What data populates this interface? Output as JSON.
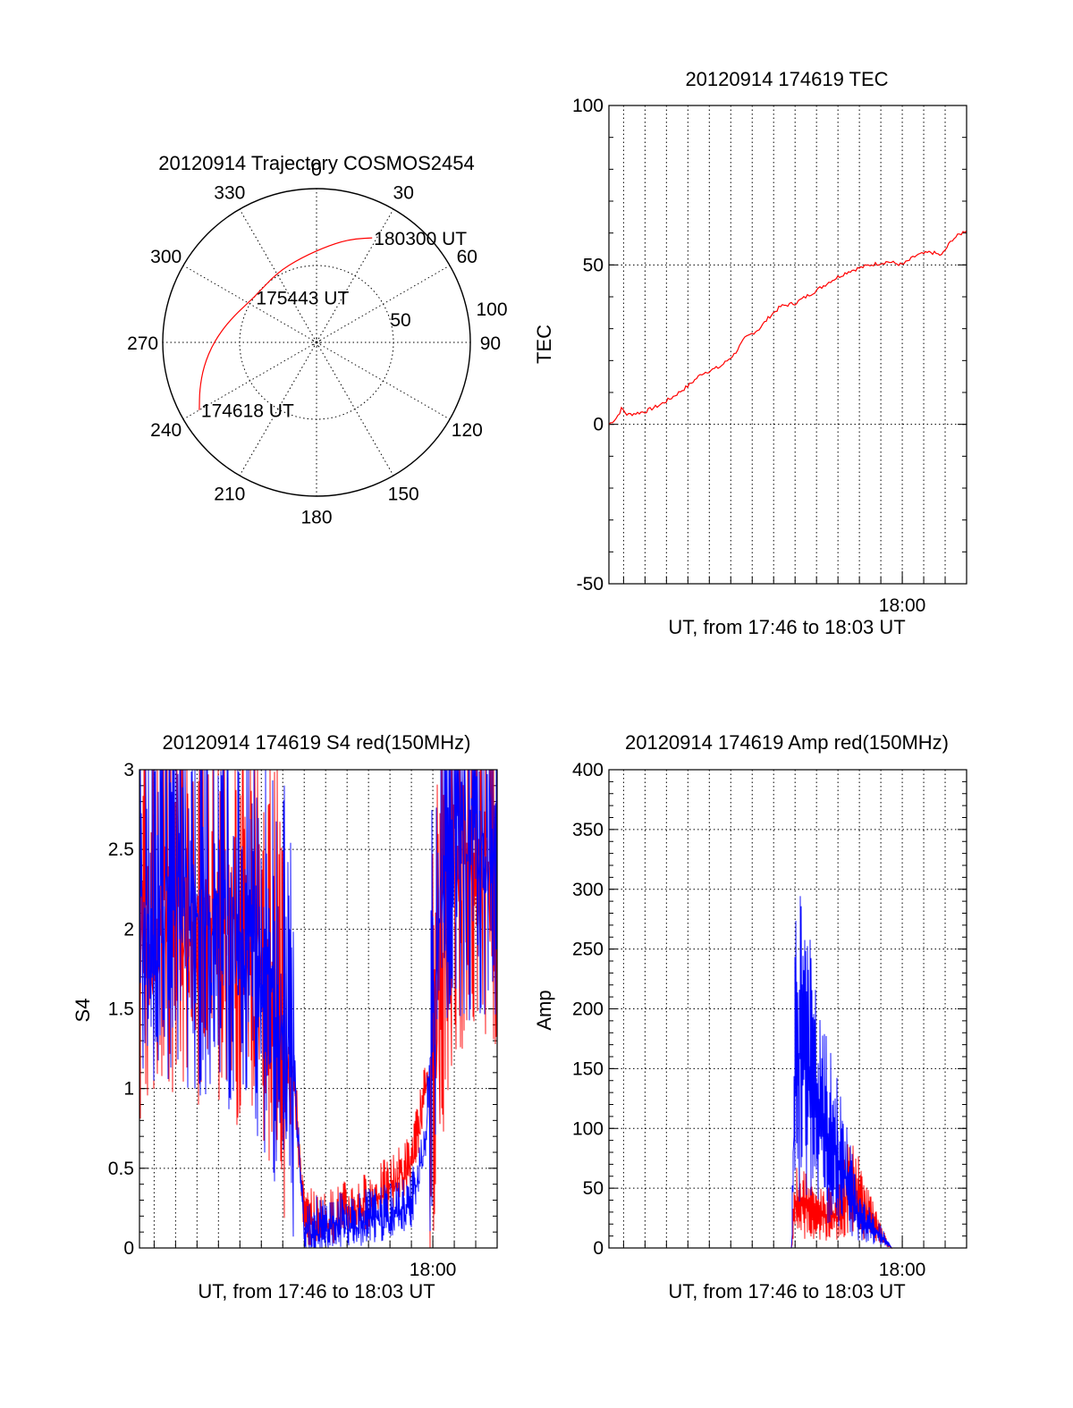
{
  "colors": {
    "red": "#ff0000",
    "blue": "#0000ff",
    "axis": "#000000"
  },
  "chart_data": [
    {
      "id": "trajectory",
      "type": "polar",
      "title": "20120914 Trajectory COSMOS2454",
      "azimuth_labels": [
        "0",
        "30",
        "60",
        "90",
        "120",
        "150",
        "180",
        "210",
        "240",
        "270",
        "300",
        "330"
      ],
      "radial_labels": [
        "50",
        "100"
      ],
      "grid": true,
      "annotations": [
        {
          "text": "180300 UT",
          "az": 28,
          "zen": 77
        },
        {
          "text": "175443 UT",
          "az": 306,
          "zen": 50
        },
        {
          "text": "174618 UT",
          "az": 240,
          "zen": 88
        }
      ],
      "series": [
        {
          "color": "red",
          "points": [
            [
              28,
              77
            ],
            [
              20,
              72
            ],
            [
              8,
              64
            ],
            [
              350,
              56
            ],
            [
              330,
              52
            ],
            [
              306,
              50
            ],
            [
              285,
              58
            ],
            [
              270,
              67
            ],
            [
              258,
              75
            ],
            [
              248,
              82
            ],
            [
              240,
              88
            ]
          ]
        }
      ]
    },
    {
      "id": "tec",
      "type": "line",
      "title": "20120914 174619 TEC",
      "ylabel": "TEC",
      "xlabel": "UT, from 17:46 to 18:03 UT",
      "xlim": [
        "17:46:19",
        "18:03:00"
      ],
      "xticks": [
        {
          "t": "18:00:00",
          "label": "18:00"
        }
      ],
      "ylim": [
        -50,
        100
      ],
      "yticks": [
        "-50",
        "0",
        "50",
        "100"
      ],
      "grid": true,
      "series": [
        {
          "color": "red",
          "points": [
            [
              "17:46:19",
              0
            ],
            [
              "17:46:40",
              2
            ],
            [
              "17:46:55",
              5
            ],
            [
              "17:47:10",
              3
            ],
            [
              "17:48:00",
              4
            ],
            [
              "17:48:40",
              6
            ],
            [
              "17:49:10",
              8
            ],
            [
              "17:50:00",
              12
            ],
            [
              "17:50:40",
              16
            ],
            [
              "17:51:30",
              18
            ],
            [
              "17:52:10",
              22
            ],
            [
              "17:52:40",
              27
            ],
            [
              "17:53:20",
              30
            ],
            [
              "17:53:50",
              34
            ],
            [
              "17:54:20",
              37
            ],
            [
              "17:55:00",
              38
            ],
            [
              "17:56:00",
              42
            ],
            [
              "17:56:40",
              45
            ],
            [
              "17:57:30",
              48
            ],
            [
              "17:58:30",
              50
            ],
            [
              "17:59:20",
              51
            ],
            [
              "18:00:00",
              50
            ],
            [
              "18:00:40",
              53
            ],
            [
              "18:01:20",
              54
            ],
            [
              "18:01:50",
              53
            ],
            [
              "18:02:20",
              58
            ],
            [
              "18:03:00",
              61
            ]
          ]
        }
      ]
    },
    {
      "id": "s4",
      "type": "line",
      "title": "20120914 174619 S4 red(150MHz)",
      "ylabel": "S4",
      "xlabel": "UT, from 17:46 to 18:03 UT",
      "xlim": [
        "17:46:19",
        "18:03:00"
      ],
      "xticks": [
        {
          "t": "18:00:00",
          "label": "18:00"
        }
      ],
      "ylim": [
        0,
        3
      ],
      "yticks": [
        "0",
        "0.5",
        "1",
        "1.5",
        "2",
        "2.5",
        "3"
      ],
      "grid": true,
      "series": [
        {
          "color": "red",
          "points": [
            [
              "17:46:19",
              2.1
            ],
            [
              "17:47:30",
              2.3
            ],
            [
              "17:49:00",
              2.2
            ],
            [
              "17:50:30",
              2.1
            ],
            [
              "17:52:00",
              2.0
            ],
            [
              "17:53:00",
              1.6
            ],
            [
              "17:53:30",
              1.1
            ],
            [
              "17:54:00",
              0.2
            ],
            [
              "17:55:00",
              0.18
            ],
            [
              "17:56:00",
              0.25
            ],
            [
              "17:57:00",
              0.3
            ],
            [
              "17:58:00",
              0.4
            ],
            [
              "17:59:00",
              0.55
            ],
            [
              "17:59:40",
              1.0
            ],
            [
              "18:00:20",
              1.8
            ],
            [
              "18:01:00",
              2.5
            ],
            [
              "18:02:00",
              2.7
            ],
            [
              "18:03:00",
              2.6
            ]
          ]
        },
        {
          "color": "blue",
          "points": [
            [
              "17:46:19",
              2.3
            ],
            [
              "17:47:30",
              2.4
            ],
            [
              "17:49:00",
              2.3
            ],
            [
              "17:50:30",
              2.2
            ],
            [
              "17:52:00",
              2.0
            ],
            [
              "17:53:00",
              1.6
            ],
            [
              "17:53:30",
              1.2
            ],
            [
              "17:54:00",
              0.15
            ],
            [
              "17:55:00",
              0.15
            ],
            [
              "17:56:00",
              0.18
            ],
            [
              "17:57:00",
              0.2
            ],
            [
              "17:58:00",
              0.22
            ],
            [
              "17:59:00",
              0.3
            ],
            [
              "17:59:40",
              0.7
            ],
            [
              "18:00:20",
              2.4
            ],
            [
              "18:01:00",
              2.7
            ],
            [
              "18:02:00",
              2.8
            ],
            [
              "18:03:00",
              2.8
            ]
          ]
        }
      ]
    },
    {
      "id": "amp",
      "type": "line",
      "title": "20120914 174619 Amp red(150MHz)",
      "ylabel": "Amp",
      "xlabel": "UT, from 17:46 to 18:03 UT",
      "xlim": [
        "17:46:19",
        "18:03:00"
      ],
      "xticks": [
        {
          "t": "18:00:00",
          "label": "18:00"
        }
      ],
      "ylim": [
        0,
        400
      ],
      "yticks": [
        "0",
        "50",
        "100",
        "150",
        "200",
        "250",
        "300",
        "350",
        "400"
      ],
      "grid": true,
      "series": [
        {
          "color": "red",
          "points": [
            [
              "17:46:19",
              0
            ],
            [
              "17:54:50",
              0
            ],
            [
              "17:55:00",
              40
            ],
            [
              "17:56:00",
              30
            ],
            [
              "17:57:00",
              25
            ],
            [
              "17:57:30",
              50
            ],
            [
              "17:58:00",
              40
            ],
            [
              "17:58:40",
              20
            ],
            [
              "17:59:00",
              10
            ],
            [
              "17:59:30",
              0
            ],
            [
              "18:03:00",
              0
            ]
          ]
        },
        {
          "color": "blue",
          "points": [
            [
              "17:46:19",
              0
            ],
            [
              "17:54:50",
              0
            ],
            [
              "17:55:00",
              140
            ],
            [
              "17:55:20",
              180
            ],
            [
              "17:56:00",
              110
            ],
            [
              "17:57:00",
              75
            ],
            [
              "17:57:30",
              50
            ],
            [
              "17:58:00",
              25
            ],
            [
              "17:59:00",
              10
            ],
            [
              "17:59:30",
              0
            ],
            [
              "18:03:00",
              0
            ]
          ]
        }
      ]
    }
  ]
}
